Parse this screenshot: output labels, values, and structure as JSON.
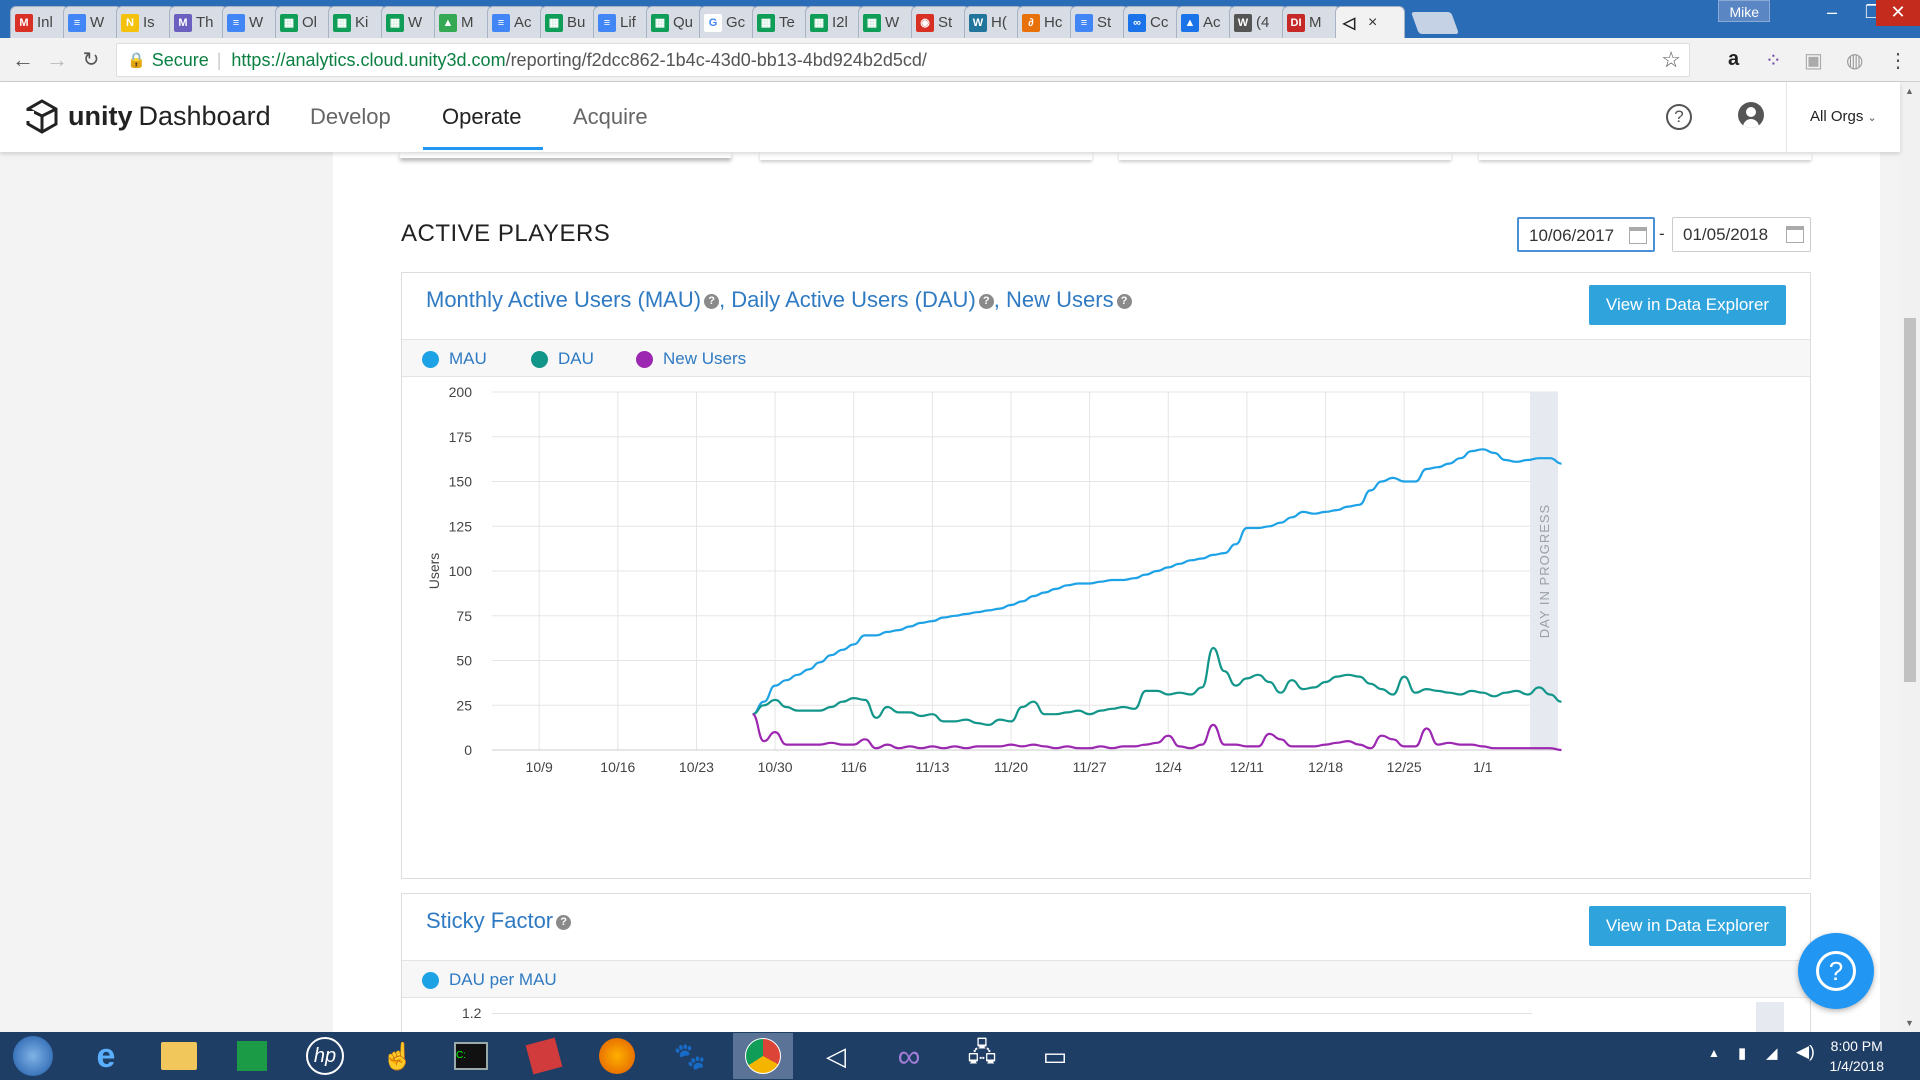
{
  "browser": {
    "tabs": [
      {
        "label": "Inl",
        "color": "#d93025",
        "glyph": "M"
      },
      {
        "label": "W",
        "color": "#4285f4",
        "glyph": "≡"
      },
      {
        "label": "Is",
        "color": "#f4c20d",
        "glyph": "N"
      },
      {
        "label": "Th",
        "color": "#6b5fbf",
        "glyph": "M"
      },
      {
        "label": "W",
        "color": "#4285f4",
        "glyph": "≡"
      },
      {
        "label": "Ol",
        "color": "#0f9d58",
        "glyph": "▦"
      },
      {
        "label": "Ki",
        "color": "#0f9d58",
        "glyph": "▦"
      },
      {
        "label": "W",
        "color": "#0f9d58",
        "glyph": "▦"
      },
      {
        "label": "M",
        "color": "#34a853",
        "glyph": "▲"
      },
      {
        "label": "Ac",
        "color": "#4285f4",
        "glyph": "≡"
      },
      {
        "label": "Bu",
        "color": "#0f9d58",
        "glyph": "▦"
      },
      {
        "label": "Lif",
        "color": "#4285f4",
        "glyph": "≡"
      },
      {
        "label": "Qu",
        "color": "#0f9d58",
        "glyph": "▦"
      },
      {
        "label": "Gc",
        "color": "#ffffff",
        "glyph": "G"
      },
      {
        "label": "Te",
        "color": "#0f9d58",
        "glyph": "▦"
      },
      {
        "label": "I2l",
        "color": "#0f9d58",
        "glyph": "▦"
      },
      {
        "label": "W",
        "color": "#0f9d58",
        "glyph": "▦"
      },
      {
        "label": "St",
        "color": "#d93025",
        "glyph": "◉"
      },
      {
        "label": "H(",
        "color": "#21759b",
        "glyph": "W"
      },
      {
        "label": "Hc",
        "color": "#e8710a",
        "glyph": "∂"
      },
      {
        "label": "St",
        "color": "#4285f4",
        "glyph": "≡"
      },
      {
        "label": "Cc",
        "color": "#1a73e8",
        "glyph": "∞"
      },
      {
        "label": "Ac",
        "color": "#1a73e8",
        "glyph": "▲"
      },
      {
        "label": "(4",
        "color": "#555555",
        "glyph": "W"
      },
      {
        "label": "M",
        "color": "#c62828",
        "glyph": "DI"
      }
    ],
    "active_tab": {
      "label": "",
      "glyph": "◁"
    },
    "user": "Mike",
    "secure_label": "Secure",
    "url_host": "https://analytics.cloud.unity3d.com",
    "url_path": "/reporting/f2dcc862-1b4c-43d0-bb13-4bd924b2d5cd/"
  },
  "header": {
    "brand_bold": "unity",
    "brand_rest": "Dashboard",
    "nav": [
      "Develop",
      "Operate",
      "Acquire"
    ],
    "active_nav": "Operate",
    "org": "All Orgs"
  },
  "section": {
    "title": "ACTIVE PLAYERS",
    "date_from": "10/06/2017",
    "date_sep": "-",
    "date_to": "01/05/2018"
  },
  "panel1": {
    "title_parts": [
      "Monthly Active Users (MAU)",
      ", Daily Active Users (DAU)",
      ", New Users"
    ],
    "button": "View in Data Explorer",
    "legend": [
      {
        "name": "MAU",
        "color": "#1ea2e6"
      },
      {
        "name": "DAU",
        "color": "#13968a"
      },
      {
        "name": "New Users",
        "color": "#9c27b0"
      }
    ],
    "day_in_progress": "DAY IN PROGRESS"
  },
  "panel2": {
    "title": "Sticky Factor",
    "button": "View in Data Explorer",
    "legend": [
      {
        "name": "DAU per MAU",
        "color": "#1ea2e6"
      }
    ],
    "ytick_top": "1.2"
  },
  "chart_data": {
    "type": "line",
    "ylabel": "Users",
    "ylim": [
      0,
      200
    ],
    "yticks": [
      0,
      25,
      50,
      75,
      100,
      125,
      150,
      175,
      200
    ],
    "xticks": [
      "10/9",
      "10/16",
      "10/23",
      "10/30",
      "11/6",
      "11/13",
      "11/20",
      "11/27",
      "12/4",
      "12/11",
      "12/18",
      "12/25",
      "1/1"
    ],
    "x_start_date": "10/6",
    "x_end_date": "1/5",
    "series": [
      {
        "name": "MAU",
        "color": "#1ea2e6",
        "start_date": "10/28",
        "values": [
          20,
          27,
          36,
          39,
          42,
          45,
          49,
          53,
          56,
          59,
          64,
          64,
          66,
          67,
          69,
          71,
          72,
          74,
          75,
          76,
          77,
          78,
          79,
          81,
          83,
          86,
          88,
          90,
          92,
          93,
          93,
          94,
          95,
          95,
          96,
          98,
          100,
          102,
          104,
          106,
          107,
          109,
          110,
          115,
          124,
          124,
          125,
          127,
          130,
          133,
          132,
          133,
          134,
          136,
          137,
          145,
          150,
          152,
          150,
          150,
          157,
          158,
          160,
          163,
          167,
          168,
          166,
          162,
          161,
          162,
          163,
          163,
          160
        ]
      },
      {
        "name": "DAU",
        "color": "#13968a",
        "start_date": "10/28",
        "values": [
          20,
          25,
          28,
          24,
          22,
          22,
          22,
          24,
          27,
          29,
          28,
          18,
          24,
          21,
          21,
          19,
          20,
          16,
          16,
          17,
          15,
          14,
          17,
          16,
          24,
          27,
          20,
          20,
          21,
          22,
          20,
          22,
          23,
          24,
          23,
          33,
          33,
          31,
          32,
          31,
          35,
          57,
          44,
          36,
          40,
          42,
          38,
          32,
          39,
          34,
          35,
          38,
          41,
          42,
          41,
          37,
          34,
          31,
          41,
          32,
          34,
          33,
          32,
          31,
          33,
          32,
          30,
          32,
          33,
          31,
          35,
          31,
          27
        ]
      },
      {
        "name": "New Users",
        "color": "#9c27b0",
        "start_date": "10/28",
        "values": [
          20,
          5,
          10,
          3,
          3,
          3,
          3,
          4,
          3,
          3,
          6,
          1,
          3,
          1,
          2,
          1,
          2,
          1,
          2,
          1,
          2,
          2,
          2,
          3,
          2,
          3,
          2,
          1,
          2,
          1,
          1,
          2,
          1,
          2,
          2,
          3,
          4,
          8,
          2,
          1,
          3,
          14,
          3,
          3,
          2,
          2,
          9,
          6,
          2,
          2,
          2,
          3,
          4,
          5,
          3,
          1,
          8,
          6,
          2,
          2,
          12,
          3,
          4,
          3,
          3,
          2,
          1,
          1,
          1,
          1,
          1,
          1,
          0
        ]
      }
    ]
  },
  "taskbar": {
    "items": [
      "start",
      "ie",
      "explorer",
      "store",
      "hp",
      "app",
      "terminal",
      "pdf",
      "firefox",
      "gimp",
      "chrome",
      "unity",
      "visual-studio",
      "network",
      "monitor"
    ],
    "active": "chrome",
    "time": "8:00 PM",
    "date": "1/4/2018"
  }
}
